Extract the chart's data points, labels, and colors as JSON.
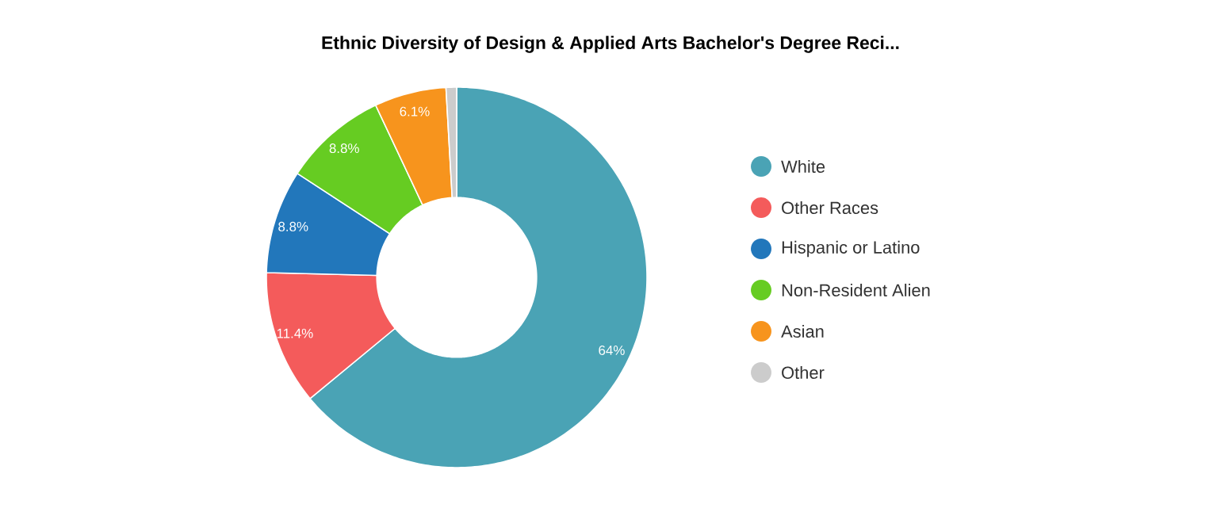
{
  "chart_data": {
    "type": "donut",
    "title": "Ethnic Diversity of Design & Applied Arts Bachelor's Degree Reci...",
    "categories": [
      "White",
      "Other Races",
      "Hispanic or Latino",
      "Non-Resident Alien",
      "Asian",
      "Other"
    ],
    "values": [
      64,
      11.4,
      8.8,
      8.8,
      6.1,
      0.9
    ],
    "colors": [
      "#4aa3b5",
      "#f45b5b",
      "#2277bb",
      "#66cc22",
      "#f7941d",
      "#cccccc"
    ],
    "value_labels": [
      "64%",
      "11.4%",
      "8.8%",
      "8.8%",
      "6.1%",
      null
    ],
    "legend": "right"
  }
}
